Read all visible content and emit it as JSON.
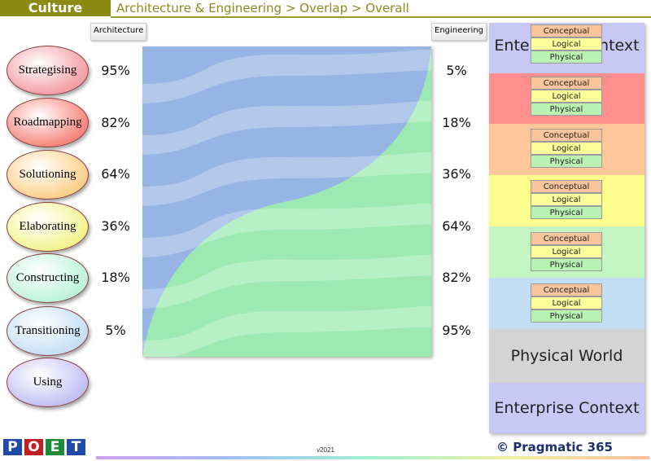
{
  "header": {
    "title": "Culture",
    "breadcrumb": "Architecture & Engineering > Overlap > Overall"
  },
  "columns": {
    "left_label": "Architecture",
    "right_label": "Engineering"
  },
  "phases": [
    {
      "label": "Strategising",
      "architecture": "95%",
      "engineering": "5%",
      "color": "#f3a0a6"
    },
    {
      "label": "Roadmapping",
      "architecture": "82%",
      "engineering": "18%",
      "color": "#f7877e"
    },
    {
      "label": "Solutioning",
      "architecture": "64%",
      "engineering": "36%",
      "color": "#fcd18c"
    },
    {
      "label": "Elaborating",
      "architecture": "36%",
      "engineering": "64%",
      "color": "#f4f491"
    },
    {
      "label": "Constructing",
      "architecture": "18%",
      "engineering": "82%",
      "color": "#bdf3dd"
    },
    {
      "label": "Transitioning",
      "architecture": "5%",
      "engineering": "95%",
      "color": "#c7e0f5"
    },
    {
      "label": "Using",
      "architecture": "",
      "engineering": "",
      "color": "#c4c1f3"
    }
  ],
  "overlap_values": [
    95,
    82,
    64,
    36,
    18,
    5
  ],
  "right_panel": {
    "top_label": "Enterprise Context",
    "middle_label": "Physical World",
    "bottom_label": "Enterprise Context",
    "levels": [
      "Conceptual",
      "Logical",
      "Physical"
    ],
    "band_colors": [
      "#ff8f8f",
      "#ffc69a",
      "#fdfd8e",
      "#c5f5c3",
      "#c3dff5",
      "#d4d4d4"
    ]
  },
  "footer": {
    "logo_letters": [
      "P",
      "O",
      "E",
      "T"
    ],
    "logo_colors": [
      "#1f4aa8",
      "#c02020",
      "#1f8a3a",
      "#1f4aa8"
    ],
    "version": "v2021",
    "brand": "© Pragmatic 365"
  }
}
